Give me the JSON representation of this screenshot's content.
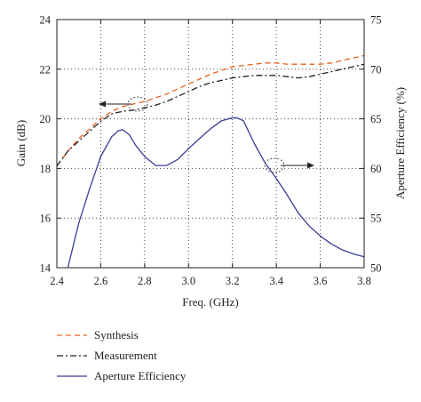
{
  "chart_data": {
    "type": "line",
    "xlabel": "Freq. (GHz)",
    "ylabel": "Gain (dB)",
    "y2label": "Aperture Efficiency (%)",
    "xlim": [
      2.4,
      3.8
    ],
    "ylim": [
      14,
      24
    ],
    "y2lim": [
      50,
      75
    ],
    "xticks": [
      "2.4",
      "2.6",
      "2.8",
      "3.0",
      "3.2",
      "3.4",
      "3.6",
      "3.8"
    ],
    "yticks": [
      "14",
      "16",
      "18",
      "20",
      "22",
      "24"
    ],
    "y2ticks": [
      "50",
      "55",
      "60",
      "65",
      "70",
      "75"
    ],
    "grid": true,
    "legend_position": "bottom",
    "series": [
      {
        "name": "Synthesis",
        "axis": "left",
        "color": "#e8601c",
        "dash": "dashed",
        "x": [
          2.4,
          2.45,
          2.5,
          2.55,
          2.6,
          2.65,
          2.7,
          2.75,
          2.8,
          2.85,
          2.9,
          2.95,
          3.0,
          3.05,
          3.1,
          3.15,
          3.2,
          3.25,
          3.3,
          3.35,
          3.4,
          3.45,
          3.5,
          3.55,
          3.6,
          3.65,
          3.7,
          3.75,
          3.8
        ],
        "values": [
          18.1,
          18.7,
          19.2,
          19.6,
          20.0,
          20.3,
          20.5,
          20.6,
          20.7,
          20.85,
          21.0,
          21.2,
          21.4,
          21.6,
          21.8,
          21.95,
          22.1,
          22.15,
          22.2,
          22.25,
          22.25,
          22.2,
          22.2,
          22.2,
          22.2,
          22.25,
          22.35,
          22.45,
          22.55
        ]
      },
      {
        "name": "Measurement",
        "axis": "left",
        "color": "#222222",
        "dash": "dashdot",
        "x": [
          2.4,
          2.45,
          2.5,
          2.55,
          2.6,
          2.65,
          2.7,
          2.75,
          2.8,
          2.85,
          2.9,
          2.95,
          3.0,
          3.05,
          3.1,
          3.15,
          3.2,
          3.25,
          3.3,
          3.35,
          3.4,
          3.45,
          3.5,
          3.55,
          3.6,
          3.65,
          3.7,
          3.75,
          3.8
        ],
        "values": [
          18.1,
          18.7,
          19.1,
          19.5,
          19.9,
          20.2,
          20.3,
          20.35,
          20.45,
          20.55,
          20.7,
          20.9,
          21.1,
          21.3,
          21.45,
          21.55,
          21.65,
          21.7,
          21.75,
          21.75,
          21.75,
          21.7,
          21.65,
          21.7,
          21.8,
          21.9,
          22.0,
          22.1,
          22.2
        ]
      },
      {
        "name": "Aperture Efficiency",
        "axis": "right",
        "color": "#3a3d96",
        "dash": "solid",
        "x": [
          2.45,
          2.5,
          2.55,
          2.6,
          2.65,
          2.68,
          2.7,
          2.73,
          2.76,
          2.8,
          2.85,
          2.9,
          2.95,
          3.0,
          3.05,
          3.1,
          3.15,
          3.2,
          3.22,
          3.25,
          3.3,
          3.35,
          3.4,
          3.45,
          3.5,
          3.55,
          3.6,
          3.65,
          3.7,
          3.75,
          3.8
        ],
        "values": [
          50.0,
          54.5,
          58.0,
          61.2,
          63.2,
          63.8,
          63.9,
          63.4,
          62.3,
          61.2,
          60.3,
          60.3,
          60.9,
          62.0,
          63.0,
          64.0,
          64.8,
          65.1,
          65.1,
          64.8,
          62.5,
          60.5,
          59.0,
          57.3,
          55.5,
          54.2,
          53.2,
          52.4,
          51.8,
          51.4,
          51.1
        ]
      }
    ]
  }
}
